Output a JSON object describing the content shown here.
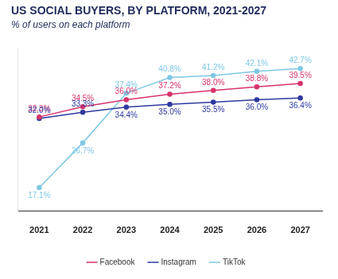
{
  "chart_data": {
    "type": "line",
    "title": "US SOCIAL BUYERS, BY PLATFORM, 2021-2027",
    "subtitle": "% of users on each platform",
    "categories": [
      "2021",
      "2022",
      "2023",
      "2024",
      "2025",
      "2026",
      "2027"
    ],
    "series": [
      {
        "name": "Facebook",
        "color": "#d6336c",
        "values": [
          32.3,
          34.5,
          36.0,
          37.2,
          38.0,
          38.8,
          39.5
        ],
        "value_labels": [
          "32.3%",
          "34.5%",
          "36.0%",
          "37.2%",
          "38.0%",
          "38.8%",
          "39.5%"
        ]
      },
      {
        "name": "Instagram",
        "color": "#2e3a9f",
        "values": [
          32.0,
          33.3,
          34.4,
          35.0,
          35.5,
          36.0,
          36.4
        ],
        "value_labels": [
          "32.0%",
          "33.3%",
          "34.4%",
          "35.0%",
          "35.5%",
          "36.0%",
          "36.4%"
        ]
      },
      {
        "name": "TikTok",
        "color": "#7ec8e3",
        "values": [
          17.1,
          26.7,
          37.4,
          40.8,
          41.2,
          42.1,
          42.7
        ],
        "value_labels": [
          "17.1%",
          "26.7%",
          "37.4%",
          "40.8%",
          "41.2%",
          "42.1%",
          "42.7%"
        ]
      }
    ],
    "ylim": [
      12,
      47
    ],
    "grid": false,
    "legend": "bottom",
    "tick_labels": "x",
    "data_labels": true,
    "marker": "circle"
  }
}
